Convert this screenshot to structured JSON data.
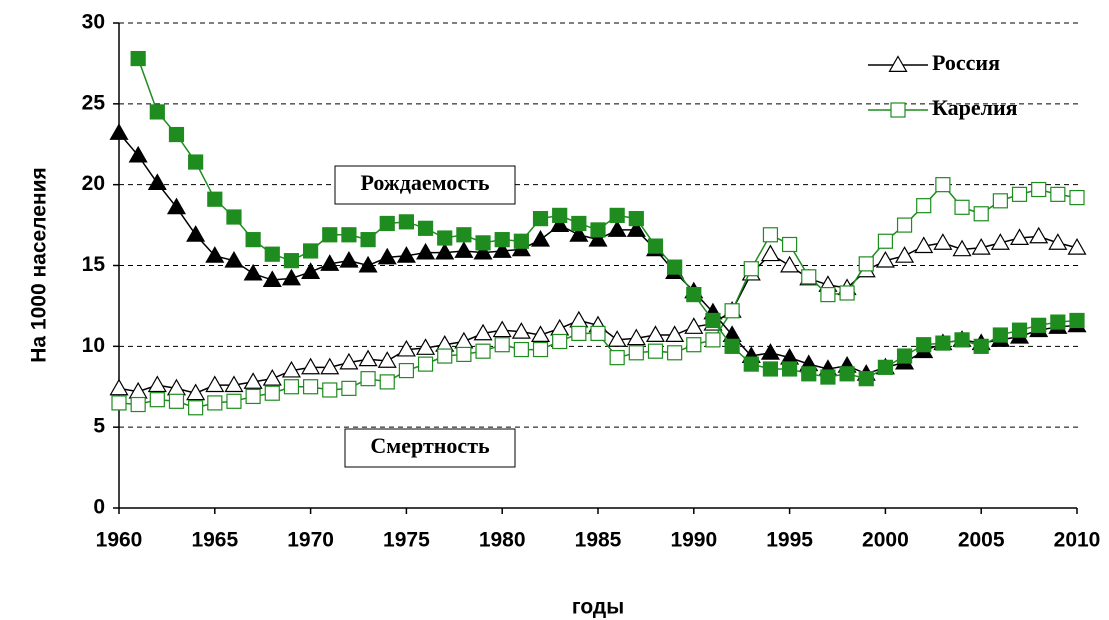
{
  "chart_data": {
    "type": "line",
    "y_label": "На 1000 населения",
    "x_label": "годы",
    "x": [
      1960,
      1961,
      1962,
      1963,
      1964,
      1965,
      1966,
      1967,
      1968,
      1969,
      1970,
      1971,
      1972,
      1973,
      1974,
      1975,
      1976,
      1977,
      1978,
      1979,
      1980,
      1981,
      1982,
      1983,
      1984,
      1985,
      1986,
      1987,
      1988,
      1989,
      1990,
      1991,
      1992,
      1993,
      1994,
      1995,
      1996,
      1997,
      1998,
      1999,
      2000,
      2001,
      2002,
      2003,
      2004,
      2005,
      2006,
      2007,
      2008,
      2009,
      2010
    ],
    "xlim": [
      1960,
      2010
    ],
    "xticks": [
      1960,
      1965,
      1970,
      1975,
      1980,
      1985,
      1990,
      1995,
      2000,
      2005,
      2010
    ],
    "ylim": [
      0,
      30
    ],
    "yticks": [
      0,
      5,
      10,
      15,
      20,
      25,
      30
    ],
    "grid": true,
    "legend": "upper right",
    "annotations": [
      {
        "text": "Рождаемость"
      },
      {
        "text": "Смертность"
      }
    ],
    "series": [
      {
        "name": "Россия",
        "color": "#000000",
        "marker": "triangle",
        "birth": [
          23.2,
          21.8,
          20.1,
          18.6,
          16.9,
          15.6,
          15.3,
          14.5,
          14.1,
          14.2,
          14.6,
          15.1,
          15.3,
          15.0,
          15.5,
          15.6,
          15.8,
          15.8,
          15.9,
          15.8,
          15.9,
          16.0,
          16.6,
          17.5,
          16.9,
          16.6,
          17.2,
          17.2,
          16.0,
          14.6,
          13.4,
          12.1,
          10.7,
          9.4,
          9.6,
          9.3,
          8.9,
          8.6,
          8.8,
          8.3,
          8.7,
          9.0,
          9.7,
          10.2,
          10.4,
          10.2,
          10.4,
          10.6,
          11.0,
          11.2,
          11.3
        ],
        "death": [
          7.4,
          7.2,
          7.6,
          7.4,
          7.1,
          7.6,
          7.6,
          7.8,
          8.0,
          8.5,
          8.7,
          8.7,
          9.0,
          9.2,
          9.1,
          9.8,
          9.9,
          10.1,
          10.3,
          10.8,
          11.0,
          10.9,
          10.7,
          11.1,
          11.6,
          11.3,
          10.4,
          10.5,
          10.7,
          10.7,
          11.2,
          11.4,
          12.2,
          14.5,
          15.7,
          15.0,
          14.2,
          13.8,
          13.6,
          14.7,
          15.3,
          15.6,
          16.2,
          16.4,
          16.0,
          16.1,
          16.4,
          16.7,
          16.8,
          16.4,
          16.1
        ]
      },
      {
        "name": "Карелия",
        "color": "#1e8c1e",
        "marker": "square",
        "birth": [
          null,
          27.8,
          24.5,
          23.1,
          21.4,
          19.1,
          18.0,
          16.6,
          15.7,
          15.3,
          15.9,
          16.9,
          16.9,
          16.6,
          17.6,
          17.7,
          17.3,
          16.7,
          16.9,
          16.4,
          16.6,
          16.5,
          17.9,
          18.1,
          17.6,
          17.2,
          18.1,
          17.9,
          16.2,
          14.9,
          13.2,
          11.6,
          10.0,
          8.9,
          8.6,
          8.6,
          8.3,
          8.1,
          8.3,
          8.0,
          8.7,
          9.4,
          10.1,
          10.2,
          10.4,
          10.0,
          10.7,
          11.0,
          11.3,
          11.5,
          11.6
        ],
        "death": [
          6.5,
          6.4,
          6.7,
          6.6,
          6.2,
          6.5,
          6.6,
          6.9,
          7.1,
          7.5,
          7.5,
          7.3,
          7.4,
          8.0,
          7.8,
          8.5,
          8.9,
          9.4,
          9.5,
          9.7,
          10.1,
          9.8,
          9.8,
          10.3,
          10.8,
          10.8,
          9.3,
          9.6,
          9.7,
          9.6,
          10.1,
          10.4,
          12.2,
          14.8,
          16.9,
          16.3,
          14.3,
          13.2,
          13.3,
          15.1,
          16.5,
          17.5,
          18.7,
          20.0,
          18.6,
          18.2,
          19.0,
          19.4,
          19.7,
          19.4,
          19.2
        ]
      }
    ]
  }
}
